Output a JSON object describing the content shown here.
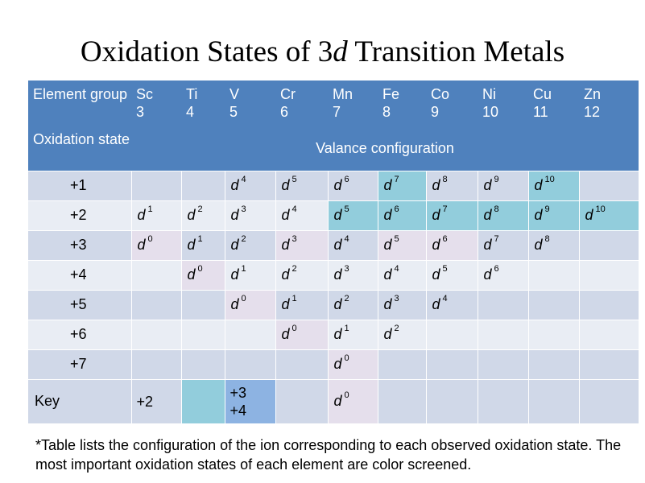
{
  "title": {
    "prefix": "Oxidation States of 3",
    "italic": "d",
    "suffix": " Transition Metals"
  },
  "header": {
    "group_label": "Element group",
    "elements": [
      {
        "symbol": "Sc",
        "group": "3"
      },
      {
        "symbol": "Ti",
        "group": "4"
      },
      {
        "symbol": "V",
        "group": "5"
      },
      {
        "symbol": "Cr",
        "group": "6"
      },
      {
        "symbol": "Mn",
        "group": "7"
      },
      {
        "symbol": "Fe",
        "group": "8"
      },
      {
        "symbol": "Co",
        "group": "9"
      },
      {
        "symbol": "Ni",
        "group": "10"
      },
      {
        "symbol": "Cu",
        "group": "11"
      },
      {
        "symbol": "Zn",
        "group": "12"
      }
    ],
    "state_label": "Oxidation state",
    "config_label": "Valance configuration"
  },
  "config_letter": "d",
  "rows": [
    {
      "state": "+1",
      "cells": [
        "",
        "",
        "4",
        "5",
        "6",
        "7",
        "8",
        "9",
        "10",
        ""
      ]
    },
    {
      "state": "+2",
      "cells": [
        "1",
        "2",
        "3",
        "4",
        "5",
        "6",
        "7",
        "8",
        "9",
        "10"
      ]
    },
    {
      "state": "+3",
      "cells": [
        "0",
        "1",
        "2",
        "3",
        "4",
        "5",
        "6",
        "7",
        "8",
        ""
      ]
    },
    {
      "state": "+4",
      "cells": [
        "",
        "0",
        "1",
        "2",
        "3",
        "4",
        "5",
        "6",
        "",
        ""
      ]
    },
    {
      "state": "+5",
      "cells": [
        "",
        "",
        "0",
        "1",
        "2",
        "3",
        "4",
        "",
        "",
        ""
      ]
    },
    {
      "state": "+6",
      "cells": [
        "",
        "",
        "",
        "0",
        "1",
        "2",
        "",
        "",
        "",
        ""
      ]
    },
    {
      "state": "+7",
      "cells": [
        "",
        "",
        "",
        "",
        "0",
        "",
        "",
        "",
        "",
        ""
      ]
    }
  ],
  "key": {
    "label": "Key",
    "lavender_label": "+2",
    "blue_label_line1": "+3",
    "blue_label_line2": "+4",
    "lavender_example_exp": "0"
  },
  "footnote": "*Table lists the configuration of the ion corresponding to each observed oxidation state. The most important oxidation states of each element are color screened.",
  "colors": {
    "header": "#4f81bd",
    "row_dark": "#d0d8e8",
    "row_light": "#e9edf4",
    "lavender": "#e5dfec",
    "cyan": "#92cddc",
    "blue": "#8db3e2"
  },
  "highlights": [
    {
      "state": "+3",
      "elements": [
        "Sc",
        "Cr",
        "Fe",
        "Co"
      ],
      "color": "lavender"
    },
    {
      "state": "+4",
      "elements": [
        "Ti"
      ],
      "color": "lavender"
    },
    {
      "state": "+5",
      "elements": [
        "V"
      ],
      "color": "lavender"
    },
    {
      "state": "+6",
      "elements": [
        "Cr"
      ],
      "color": "lavender"
    },
    {
      "state": "+7",
      "elements": [
        "Mn"
      ],
      "color": "lavender"
    },
    {
      "state": "+1",
      "elements": [
        "Fe",
        "Cu"
      ],
      "color": "cyan"
    },
    {
      "state": "+2",
      "elements": [
        "Mn",
        "Fe",
        "Co",
        "Ni",
        "Cu",
        "Zn"
      ],
      "color": "cyan"
    }
  ]
}
